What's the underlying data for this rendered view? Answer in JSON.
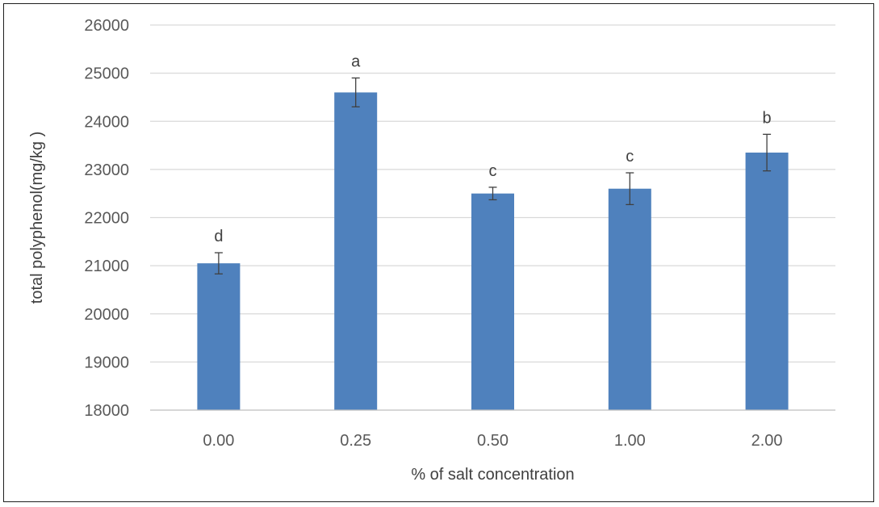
{
  "chart_data": {
    "type": "bar",
    "title": "",
    "xlabel": "% of salt concentration",
    "ylabel": "total polyphenol(mg/kg )",
    "categories": [
      "0.00",
      "0.25",
      "0.50",
      "1.00",
      "2.00"
    ],
    "values": [
      21050,
      24600,
      22500,
      22600,
      23350
    ],
    "error": [
      220,
      300,
      130,
      330,
      380
    ],
    "significance": [
      "d",
      "a",
      "c",
      "c",
      "b"
    ],
    "ylim": [
      18000,
      26000
    ],
    "yticks": [
      18000,
      19000,
      20000,
      21000,
      22000,
      23000,
      24000,
      25000,
      26000
    ],
    "grid": true,
    "legend": "none",
    "colors": {
      "bar": "#4f81bd",
      "grid": "#d9d9d9",
      "error": "#404040"
    }
  }
}
